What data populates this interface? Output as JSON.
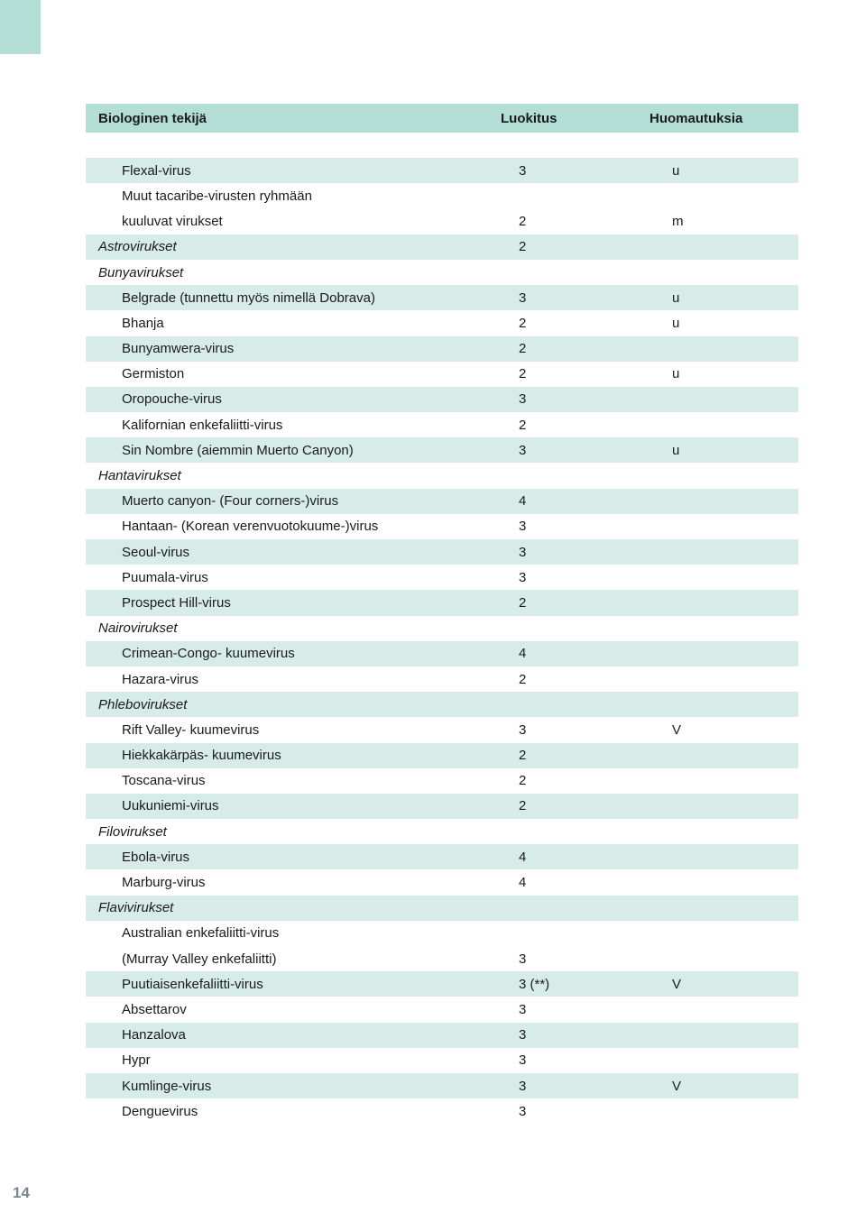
{
  "header": {
    "col1": "Biologinen tekijä",
    "col2": "Luokitus",
    "col3": "Huomautuksia"
  },
  "rows": [
    {
      "type": "spacer"
    },
    {
      "band": true,
      "indent": 2,
      "c1": "Flexal-virus",
      "c2": "3",
      "c3": "u"
    },
    {
      "band": false,
      "indent": 2,
      "c1": "Muut tacaribe-virusten ryhmään",
      "c2": "",
      "c3": ""
    },
    {
      "band": false,
      "indent": 2,
      "c1": "kuuluvat virukset",
      "c2": "2",
      "c3": "m"
    },
    {
      "band": true,
      "indent": 0,
      "italic": true,
      "c1": "Astrovirukset",
      "c2": "2",
      "c3": ""
    },
    {
      "band": false,
      "indent": 0,
      "italic": true,
      "c1": "Bunyavirukset",
      "c2": "",
      "c3": ""
    },
    {
      "band": true,
      "indent": 2,
      "c1": "Belgrade (tunnettu myös nimellä Dobrava)",
      "c2": "3",
      "c3": "u"
    },
    {
      "band": false,
      "indent": 2,
      "c1": "Bhanja",
      "c2": "2",
      "c3": "u"
    },
    {
      "band": true,
      "indent": 2,
      "c1": "Bunyamwera-virus",
      "c2": "2",
      "c3": ""
    },
    {
      "band": false,
      "indent": 2,
      "c1": "Germiston",
      "c2": "2",
      "c3": "u"
    },
    {
      "band": true,
      "indent": 2,
      "c1": "Oropouche-virus",
      "c2": "3",
      "c3": ""
    },
    {
      "band": false,
      "indent": 2,
      "c1": "Kalifornian enkefaliitti-virus",
      "c2": "2",
      "c3": ""
    },
    {
      "band": true,
      "indent": 2,
      "c1": "Sin Nombre (aiemmin Muerto Canyon)",
      "c2": "3",
      "c3": "u"
    },
    {
      "band": false,
      "indent": 0,
      "italic": true,
      "c1": "Hantavirukset",
      "c2": "",
      "c3": ""
    },
    {
      "band": true,
      "indent": 2,
      "c1": "Muerto canyon- (Four corners-)virus",
      "c2": "4",
      "c3": ""
    },
    {
      "band": false,
      "indent": 2,
      "c1": "Hantaan- (Korean verenvuotokuume-)virus",
      "c2": "3",
      "c3": ""
    },
    {
      "band": true,
      "indent": 2,
      "c1": "Seoul-virus",
      "c2": "3",
      "c3": ""
    },
    {
      "band": false,
      "indent": 2,
      "c1": "Puumala-virus",
      "c2": "3",
      "c3": ""
    },
    {
      "band": true,
      "indent": 2,
      "c1": "Prospect Hill-virus",
      "c2": "2",
      "c3": ""
    },
    {
      "band": false,
      "indent": 0,
      "italic": true,
      "c1": "Nairovirukset",
      "c2": "",
      "c3": ""
    },
    {
      "band": true,
      "indent": 2,
      "c1": "Crimean-Congo- kuumevirus",
      "c2": "4",
      "c3": ""
    },
    {
      "band": false,
      "indent": 2,
      "c1": "Hazara-virus",
      "c2": "2",
      "c3": ""
    },
    {
      "band": true,
      "indent": 0,
      "italic": true,
      "c1": "Phlebovirukset",
      "c2": "",
      "c3": ""
    },
    {
      "band": false,
      "indent": 2,
      "c1": "Rift Valley- kuumevirus",
      "c2": "3",
      "c3": "V"
    },
    {
      "band": true,
      "indent": 2,
      "c1": "Hiekkakärpäs- kuumevirus",
      "c2": "2",
      "c3": ""
    },
    {
      "band": false,
      "indent": 2,
      "c1": "Toscana-virus",
      "c2": "2",
      "c3": ""
    },
    {
      "band": true,
      "indent": 2,
      "c1": "Uukuniemi-virus",
      "c2": "2",
      "c3": ""
    },
    {
      "band": false,
      "indent": 0,
      "italic": true,
      "c1": "Filovirukset",
      "c2": "",
      "c3": ""
    },
    {
      "band": true,
      "indent": 2,
      "c1": "Ebola-virus",
      "c2": "4",
      "c3": ""
    },
    {
      "band": false,
      "indent": 2,
      "c1": "Marburg-virus",
      "c2": "4",
      "c3": ""
    },
    {
      "band": true,
      "indent": 0,
      "italic": true,
      "c1": "Flavivirukset",
      "c2": "",
      "c3": ""
    },
    {
      "band": false,
      "indent": 2,
      "c1": "Australian enkefaliitti-virus",
      "c2": "",
      "c3": ""
    },
    {
      "band": false,
      "indent": 2,
      "c1": "(Murray Valley enkefaliitti)",
      "c2": "3",
      "c3": ""
    },
    {
      "band": true,
      "indent": 2,
      "c1": "Puutiaisenkefaliitti-virus",
      "c2": "3 (**)",
      "c3": "V"
    },
    {
      "band": false,
      "indent": 2,
      "c1": "Absettarov",
      "c2": "3",
      "c3": ""
    },
    {
      "band": true,
      "indent": 2,
      "c1": "Hanzalova",
      "c2": "3",
      "c3": ""
    },
    {
      "band": false,
      "indent": 2,
      "c1": "Hypr",
      "c2": "3",
      "c3": ""
    },
    {
      "band": true,
      "indent": 2,
      "c1": "Kumlinge-virus",
      "c2": "3",
      "c3": "V"
    },
    {
      "band": false,
      "indent": 2,
      "c1": "Denguevirus",
      "c2": "3",
      "c3": ""
    }
  ],
  "page_number": "14",
  "colors": {
    "header_bg": "#b2ded6",
    "band_bg": "#d7ece9",
    "text": "#1a1a1a",
    "page_num": "#7d868a"
  }
}
